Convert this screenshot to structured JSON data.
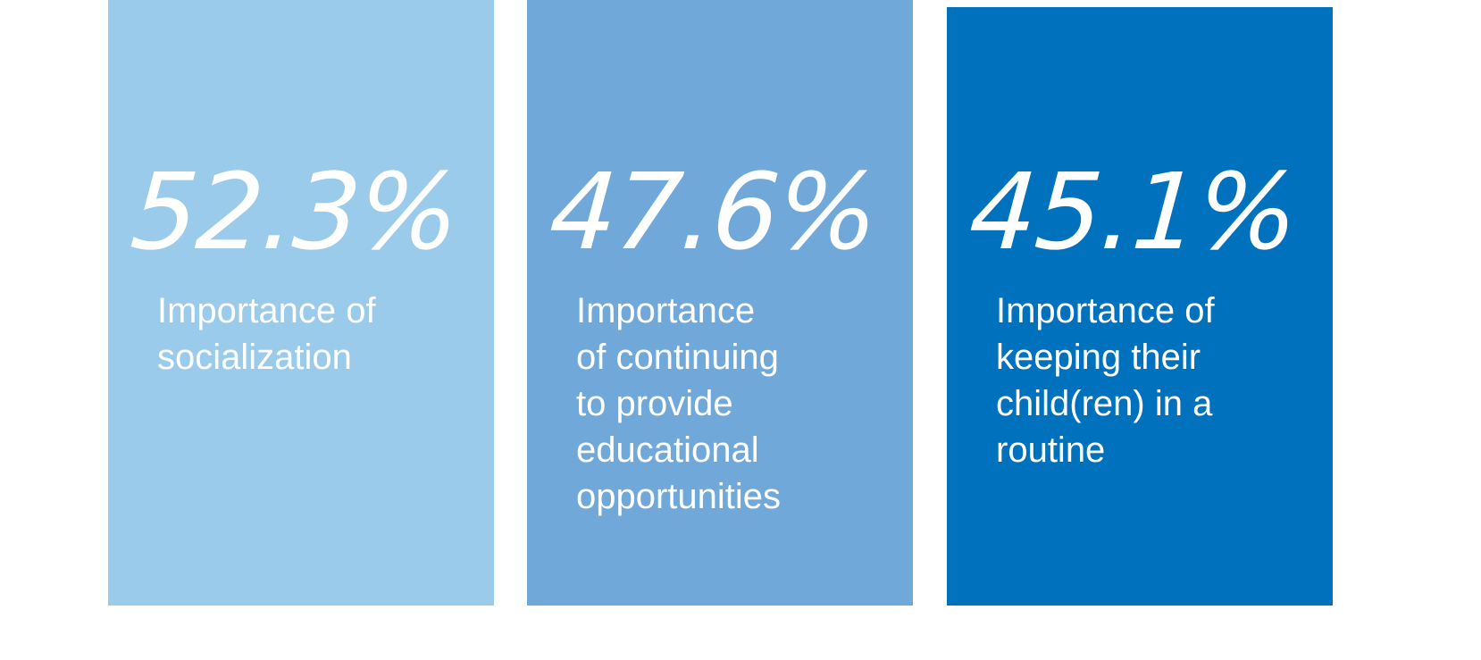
{
  "chart_data": {
    "type": "bar",
    "title": "",
    "xlabel": "",
    "ylabel": "",
    "ylim": [
      0,
      55
    ],
    "grid": false,
    "categories": [
      "Importance of\nsocialization",
      "Importance\nof continuing\nto provide\neducational\nopportunities",
      "Importance of\nkeeping their\nchild(ren) in a\nroutine"
    ],
    "values": [
      52.3,
      47.6,
      45.1
    ],
    "value_labels": [
      "52.3%",
      "47.6%",
      "45.1%"
    ],
    "colors": [
      "#9ACBEB",
      "#6FA8D9",
      "#0071BC"
    ]
  }
}
